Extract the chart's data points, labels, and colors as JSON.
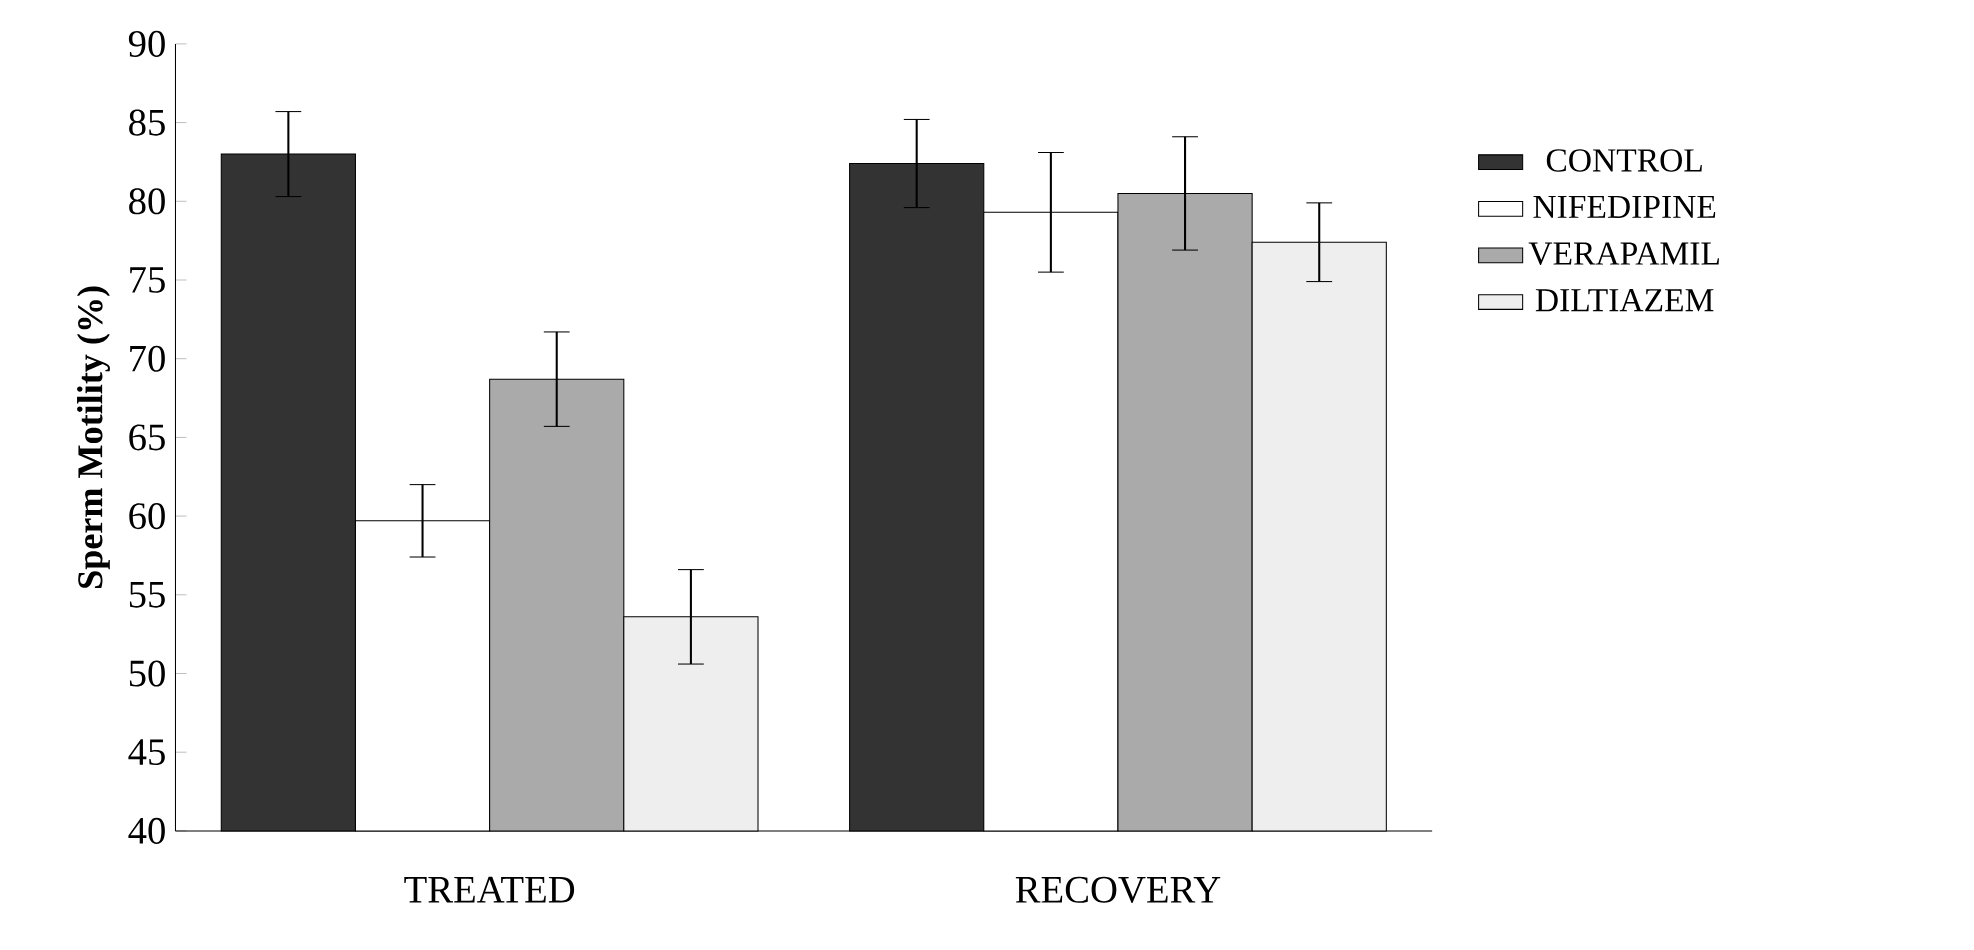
{
  "chart_data": {
    "type": "bar",
    "ylabel": "Sperm Motility (%)",
    "categories": [
      "TREATED",
      "RECOVERY"
    ],
    "series": [
      {
        "name": "CONTROL",
        "color": "#333333",
        "values": [
          83,
          82.4
        ],
        "errors": [
          2.7,
          2.8
        ]
      },
      {
        "name": "NIFEDIPINE",
        "color": "#ffffff",
        "values": [
          59.7,
          79.3
        ],
        "errors": [
          2.3,
          3.8
        ]
      },
      {
        "name": "VERAPAMIL",
        "color": "#aaaaaa",
        "values": [
          68.7,
          80.5
        ],
        "errors": [
          3,
          3.6
        ]
      },
      {
        "name": "DILTIAZEM",
        "color": "#eeeeee",
        "values": [
          53.6,
          77.4
        ],
        "errors": [
          3,
          2.5
        ]
      }
    ],
    "ylim": [
      40,
      90
    ],
    "yticks": [
      40,
      45,
      50,
      55,
      60,
      65,
      70,
      75,
      80,
      85,
      90
    ],
    "legend": "right"
  }
}
